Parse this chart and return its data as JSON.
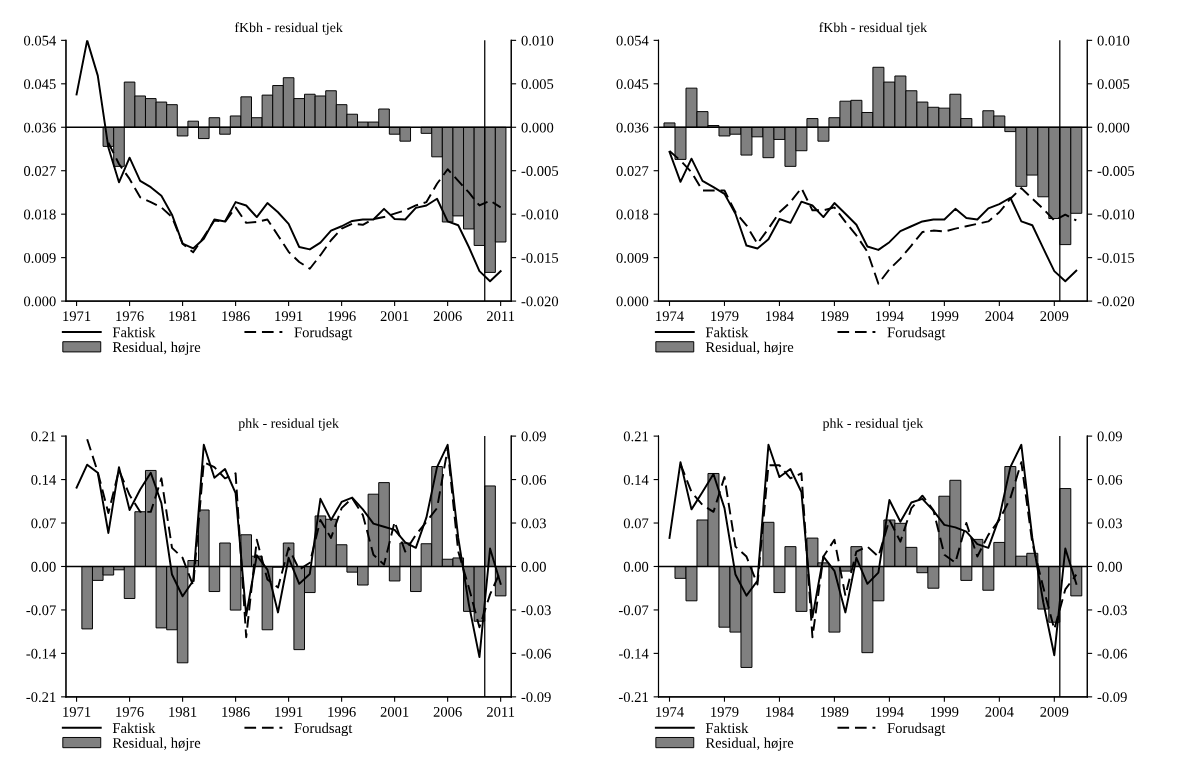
{
  "chart_data": [
    {
      "type": "line",
      "title": "fKbh - residual tjek",
      "legend": "bottom",
      "x": [
        1971,
        1972,
        1973,
        1974,
        1975,
        1976,
        1977,
        1978,
        1979,
        1980,
        1981,
        1982,
        1983,
        1984,
        1985,
        1986,
        1987,
        1988,
        1989,
        1990,
        1991,
        1992,
        1993,
        1994,
        1995,
        1996,
        1997,
        1998,
        1999,
        2000,
        2001,
        2002,
        2003,
        2004,
        2005,
        2006,
        2007,
        2008,
        2009,
        2010,
        2011
      ],
      "xlim": [
        1970,
        2012
      ],
      "xticks": [
        1971,
        1976,
        1981,
        1986,
        1991,
        1996,
        2001,
        2006,
        2011
      ],
      "ylim": [
        0,
        0.054
      ],
      "yticks": [
        {
          "value": 0,
          "label": "0.000"
        },
        {
          "value": 0.009,
          "label": "0.009"
        },
        {
          "value": 0.018,
          "label": "0.018"
        },
        {
          "value": 0.027,
          "label": "0.027"
        },
        {
          "value": 0.036,
          "label": "0.036"
        },
        {
          "value": 0.045,
          "label": "0.045"
        },
        {
          "value": 0.054,
          "label": "0.054"
        }
      ],
      "y2lim": [
        -0.02,
        0.01
      ],
      "y2ticks": [
        {
          "value": -0.02,
          "label": "-0.020"
        },
        {
          "value": -0.015,
          "label": "-0.015"
        },
        {
          "value": -0.01,
          "label": "-0.010"
        },
        {
          "value": -0.005,
          "label": "-0.005"
        },
        {
          "value": 0,
          "label": "0.000"
        },
        {
          "value": 0.005,
          "label": "0.005"
        },
        {
          "value": 0.01,
          "label": "0.010"
        }
      ],
      "ref_lines": [
        {
          "axis": "y2",
          "value": 0,
          "color": "#000000"
        },
        {
          "axis": "x",
          "value": 2009.5,
          "color": "#000000"
        }
      ],
      "series": [
        {
          "name": "Faktisk",
          "color": "#000000",
          "line_style": "solid",
          "values": [
            0.0428,
            0.054,
            0.0467,
            0.0318,
            0.0246,
            0.0297,
            0.0249,
            0.0236,
            0.0218,
            0.0179,
            0.0119,
            0.0109,
            0.0129,
            0.0169,
            0.0165,
            0.0205,
            0.0198,
            0.0174,
            0.0203,
            0.0184,
            0.016,
            0.0112,
            0.0107,
            0.0121,
            0.0146,
            0.0155,
            0.0166,
            0.0169,
            0.0169,
            0.0191,
            0.017,
            0.0169,
            0.0193,
            0.0198,
            0.0212,
            0.0165,
            0.0157,
            0.0112,
            0.0062,
            0.0041,
            0.0062
          ]
        },
        {
          "name": "Forudsagt",
          "color": "#000000",
          "line_style": "dashed",
          "values": [
            null,
            null,
            null,
            0.0328,
            0.0284,
            0.0253,
            0.0215,
            0.0205,
            0.0194,
            0.0174,
            0.0119,
            0.0101,
            0.0133,
            0.0167,
            0.0164,
            0.0194,
            0.0162,
            0.0164,
            0.0169,
            0.0136,
            0.0102,
            0.0081,
            0.0067,
            0.0095,
            0.0126,
            0.015,
            0.016,
            0.0158,
            0.017,
            0.0174,
            0.0181,
            0.0188,
            0.0198,
            0.0205,
            0.0243,
            0.0273,
            0.0249,
            0.0225,
            0.0198,
            0.0208,
            0.0194
          ]
        },
        {
          "name": "Residual, højre",
          "type": "bar",
          "axis": "y2",
          "color": "#808080",
          "values": [
            null,
            null,
            null,
            -0.0022,
            -0.0045,
            0.0052,
            0.0036,
            0.0033,
            0.0029,
            0.0026,
            -0.001,
            0.0007,
            -0.0013,
            0.0011,
            -0.0008,
            0.0013,
            0.0035,
            0.0011,
            0.0037,
            0.0048,
            0.0057,
            0.0033,
            0.0038,
            0.0036,
            0.0042,
            0.0026,
            0.0015,
            0.0006,
            0.0006,
            0.0021,
            -0.0008,
            -0.0016,
            null,
            -0.0007,
            -0.0034,
            -0.0109,
            -0.0102,
            -0.0117,
            -0.0136,
            -0.0167,
            -0.0132
          ]
        }
      ]
    },
    {
      "type": "line",
      "title": "fKbh - residual tjek",
      "legend": "bottom",
      "x": [
        1974,
        1975,
        1976,
        1977,
        1978,
        1979,
        1980,
        1981,
        1982,
        1983,
        1984,
        1985,
        1986,
        1987,
        1988,
        1989,
        1990,
        1991,
        1992,
        1993,
        1994,
        1995,
        1996,
        1997,
        1998,
        1999,
        2000,
        2001,
        2002,
        2003,
        2004,
        2005,
        2006,
        2007,
        2008,
        2009,
        2010,
        2011
      ],
      "xlim": [
        1973,
        2012
      ],
      "xticks": [
        1974,
        1979,
        1984,
        1989,
        1994,
        1999,
        2004,
        2009
      ],
      "ylim": [
        0,
        0.054
      ],
      "yticks": [
        {
          "value": 0,
          "label": "0.000"
        },
        {
          "value": 0.009,
          "label": "0.009"
        },
        {
          "value": 0.018,
          "label": "0.018"
        },
        {
          "value": 0.027,
          "label": "0.027"
        },
        {
          "value": 0.036,
          "label": "0.036"
        },
        {
          "value": 0.045,
          "label": "0.045"
        },
        {
          "value": 0.054,
          "label": "0.054"
        }
      ],
      "y2lim": [
        -0.02,
        0.01
      ],
      "y2ticks": [
        {
          "value": -0.02,
          "label": "-0.020"
        },
        {
          "value": -0.015,
          "label": "-0.015"
        },
        {
          "value": -0.01,
          "label": "-0.010"
        },
        {
          "value": -0.005,
          "label": "-0.005"
        },
        {
          "value": 0,
          "label": "0.000"
        },
        {
          "value": 0.005,
          "label": "0.005"
        },
        {
          "value": 0.01,
          "label": "0.010"
        }
      ],
      "ref_lines": [
        {
          "axis": "y2",
          "value": 0,
          "color": "#000000"
        },
        {
          "axis": "x",
          "value": 2009.5,
          "color": "#000000"
        }
      ],
      "series": [
        {
          "name": "Faktisk",
          "color": "#000000",
          "line_style": "solid",
          "values": [
            0.0309,
            0.0247,
            0.0295,
            0.0249,
            0.0236,
            0.0222,
            0.0181,
            0.0115,
            0.0109,
            0.0128,
            0.017,
            0.0162,
            0.0206,
            0.0198,
            0.0174,
            0.0203,
            0.0181,
            0.0158,
            0.0113,
            0.0106,
            0.0122,
            0.0145,
            0.0155,
            0.0165,
            0.0169,
            0.0169,
            0.0191,
            0.0172,
            0.0169,
            0.0192,
            0.0201,
            0.0214,
            0.0165,
            0.0157,
            0.0109,
            0.0062,
            0.0041,
            0.0063
          ]
        },
        {
          "name": "Forudsagt",
          "color": "#000000",
          "line_style": "dashed",
          "values": [
            0.0311,
            0.0291,
            0.0267,
            0.0229,
            0.0229,
            0.0229,
            0.0184,
            0.0157,
            0.0119,
            0.015,
            0.0184,
            0.0205,
            0.0234,
            0.0188,
            0.0188,
            0.0194,
            0.0164,
            0.0136,
            0.0102,
            0.0036,
            0.0066,
            0.0088,
            0.0115,
            0.0143,
            0.0146,
            0.0144,
            0.015,
            0.0155,
            0.016,
            0.0165,
            0.0184,
            0.0212,
            0.0234,
            0.0212,
            0.0191,
            0.0167,
            0.0179,
            0.0167
          ]
        },
        {
          "name": "Residual, højre",
          "type": "bar",
          "axis": "y2",
          "color": "#808080",
          "values": [
            0.0005,
            -0.0037,
            0.0045,
            0.0018,
            0.0002,
            -0.001,
            -0.0008,
            -0.0032,
            -0.0011,
            -0.0035,
            -0.0014,
            -0.0045,
            -0.0027,
            0.001,
            -0.0016,
            0.0011,
            0.003,
            0.0031,
            0.0017,
            0.0069,
            0.0052,
            0.0059,
            0.0042,
            0.0029,
            0.0023,
            0.0022,
            0.0038,
            0.001,
            null,
            0.0019,
            0.0013,
            -0.0005,
            -0.0068,
            -0.0055,
            -0.008,
            -0.0105,
            -0.0135,
            -0.0099
          ]
        }
      ]
    },
    {
      "type": "line",
      "title": "phk - residual tjek",
      "legend": "bottom",
      "x": [
        1971,
        1972,
        1973,
        1974,
        1975,
        1976,
        1977,
        1978,
        1979,
        1980,
        1981,
        1982,
        1983,
        1984,
        1985,
        1986,
        1987,
        1988,
        1989,
        1990,
        1991,
        1992,
        1993,
        1994,
        1995,
        1996,
        1997,
        1998,
        1999,
        2000,
        2001,
        2002,
        2003,
        2004,
        2005,
        2006,
        2007,
        2008,
        2009,
        2010,
        2011
      ],
      "xlim": [
        1970,
        2012
      ],
      "xticks": [
        1971,
        1976,
        1981,
        1986,
        1991,
        1996,
        2001,
        2006,
        2011
      ],
      "ylim": [
        -0.21,
        0.21
      ],
      "yticks": [
        {
          "value": -0.21,
          "label": "-0.21"
        },
        {
          "value": -0.14,
          "label": "-0.14"
        },
        {
          "value": -0.07,
          "label": "-0.07"
        },
        {
          "value": 0,
          "label": "0.00"
        },
        {
          "value": 0.07,
          "label": "0.07"
        },
        {
          "value": 0.14,
          "label": "0.14"
        },
        {
          "value": 0.21,
          "label": "0.21"
        }
      ],
      "y2lim": [
        -0.09,
        0.09
      ],
      "y2ticks": [
        {
          "value": -0.09,
          "label": "-0.09"
        },
        {
          "value": -0.06,
          "label": "-0.06"
        },
        {
          "value": -0.03,
          "label": "-0.03"
        },
        {
          "value": 0,
          "label": "0.00"
        },
        {
          "value": 0.03,
          "label": "0.03"
        },
        {
          "value": 0.06,
          "label": "0.06"
        },
        {
          "value": 0.09,
          "label": "0.09"
        }
      ],
      "ref_lines": [
        {
          "axis": "y2",
          "value": 0,
          "color": "#000000"
        },
        {
          "axis": "x",
          "value": 2009.5,
          "color": "#000000"
        }
      ],
      "series": [
        {
          "name": "Faktisk",
          "color": "#000000",
          "line_style": "solid",
          "values": [
            0.127,
            0.164,
            0.151,
            0.054,
            0.16,
            0.091,
            0.124,
            0.151,
            0.102,
            -0.013,
            -0.048,
            -0.023,
            0.196,
            0.143,
            0.157,
            0.118,
            -0.079,
            0.018,
            -0.005,
            -0.074,
            0.014,
            -0.028,
            -0.012,
            0.109,
            0.075,
            0.104,
            0.111,
            0.092,
            0.069,
            0.064,
            0.059,
            0.039,
            0.03,
            0.079,
            0.16,
            0.196,
            0.046,
            -0.061,
            -0.146,
            0.029,
            -0.028
          ]
        },
        {
          "name": "Forudsagt",
          "color": "#000000",
          "line_style": "dashed",
          "values": [
            null,
            0.205,
            0.152,
            0.086,
            0.155,
            0.115,
            0.088,
            0.088,
            0.142,
            0.03,
            0.014,
            -0.031,
            0.168,
            0.16,
            0.142,
            0.15,
            -0.114,
            0.043,
            -0.021,
            -0.034,
            0.03,
            -0.005,
            0.006,
            0.075,
            0.046,
            0.094,
            0.11,
            0.083,
            0.019,
            0.003,
            0.072,
            0.024,
            0.051,
            0.072,
            0.094,
            0.189,
            0.024,
            -0.034,
            -0.098,
            -0.045,
            -0.007
          ]
        },
        {
          "name": "Residual, højre",
          "type": "bar",
          "axis": "y2",
          "color": "#808080",
          "values": [
            null,
            -0.0431,
            -0.0096,
            -0.0059,
            -0.0023,
            -0.0221,
            0.0378,
            0.0663,
            -0.0424,
            -0.0437,
            -0.0665,
            0.0041,
            0.039,
            -0.0173,
            0.0162,
            -0.0301,
            0.0219,
            0.0071,
            -0.0437,
            -0.0005,
            0.0162,
            -0.0574,
            -0.018,
            0.0349,
            0.0326,
            0.015,
            -0.0039,
            -0.0128,
            0.0499,
            0.0579,
            -0.01,
            0.0162,
            -0.0173,
            0.0157,
            0.069,
            0.005,
            0.0059,
            -0.031,
            -0.0378,
            0.0556,
            -0.0203
          ]
        }
      ]
    },
    {
      "type": "line",
      "title": "phk - residual tjek",
      "legend": "bottom",
      "x": [
        1974,
        1975,
        1976,
        1977,
        1978,
        1979,
        1980,
        1981,
        1982,
        1983,
        1984,
        1985,
        1986,
        1987,
        1988,
        1989,
        1990,
        1991,
        1992,
        1993,
        1994,
        1995,
        1996,
        1997,
        1998,
        1999,
        2000,
        2001,
        2002,
        2003,
        2004,
        2005,
        2006,
        2007,
        2008,
        2009,
        2010,
        2011
      ],
      "xlim": [
        1973,
        2012
      ],
      "xticks": [
        1974,
        1979,
        1984,
        1989,
        1994,
        1999,
        2004,
        2009
      ],
      "ylim": [
        -0.21,
        0.21
      ],
      "yticks": [
        {
          "value": -0.21,
          "label": "-0.21"
        },
        {
          "value": -0.14,
          "label": "-0.14"
        },
        {
          "value": -0.07,
          "label": "-0.07"
        },
        {
          "value": 0,
          "label": "0.00"
        },
        {
          "value": 0.07,
          "label": "0.07"
        },
        {
          "value": 0.14,
          "label": "0.14"
        },
        {
          "value": 0.21,
          "label": "0.21"
        }
      ],
      "y2lim": [
        -0.09,
        0.09
      ],
      "y2ticks": [
        {
          "value": -0.09,
          "label": "-0.09"
        },
        {
          "value": -0.06,
          "label": "-0.06"
        },
        {
          "value": -0.03,
          "label": "-0.03"
        },
        {
          "value": 0,
          "label": "0.00"
        },
        {
          "value": 0.03,
          "label": "0.03"
        },
        {
          "value": 0.06,
          "label": "0.06"
        },
        {
          "value": 0.09,
          "label": "0.09"
        }
      ],
      "ref_lines": [
        {
          "axis": "y2",
          "value": 0,
          "color": "#000000"
        },
        {
          "axis": "x",
          "value": 2009.5,
          "color": "#000000"
        }
      ],
      "series": [
        {
          "name": "Faktisk",
          "color": "#000000",
          "line_style": "solid",
          "values": [
            0.046,
            0.168,
            0.092,
            0.12,
            0.149,
            0.094,
            -0.013,
            -0.047,
            -0.023,
            0.196,
            0.144,
            0.157,
            0.12,
            -0.082,
            0.016,
            -0.007,
            -0.074,
            0.014,
            -0.028,
            -0.01,
            0.107,
            0.072,
            0.103,
            0.109,
            0.09,
            0.067,
            0.063,
            0.056,
            0.036,
            0.03,
            0.079,
            0.16,
            0.196,
            0.046,
            -0.058,
            -0.143,
            0.029,
            -0.028
          ]
        },
        {
          "name": "Forudsagt",
          "color": "#000000",
          "line_style": "dashed",
          "values": [
            null,
            0.165,
            0.12,
            0.099,
            0.088,
            0.144,
            0.032,
            0.016,
            -0.029,
            0.163,
            0.163,
            0.142,
            0.15,
            -0.114,
            0.016,
            0.043,
            -0.047,
            0.024,
            0.032,
            0.016,
            0.075,
            0.04,
            0.094,
            0.114,
            0.091,
            0.019,
            0.006,
            0.07,
            0.016,
            0.051,
            0.075,
            0.11,
            0.168,
            0.038,
            -0.034,
            -0.101,
            -0.037,
            -0.013
          ]
        },
        {
          "name": "Residual, højre",
          "type": "bar",
          "axis": "y2",
          "color": "#808080",
          "values": [
            null,
            -0.0082,
            -0.0237,
            0.0321,
            0.0642,
            -0.0419,
            -0.0453,
            -0.0697,
            null,
            0.0305,
            -0.018,
            0.0137,
            -0.031,
            0.0196,
            0.0025,
            -0.0453,
            -0.0032,
            0.0137,
            -0.0595,
            -0.0237,
            0.0321,
            0.0298,
            0.0132,
            -0.0043,
            -0.015,
            0.0485,
            0.0595,
            -0.0096,
            0.0187,
            -0.0164,
            0.0166,
            0.069,
            0.0071,
            0.0091,
            -0.0294,
            -0.0385,
            0.0538,
            -0.0203
          ]
        }
      ]
    }
  ]
}
